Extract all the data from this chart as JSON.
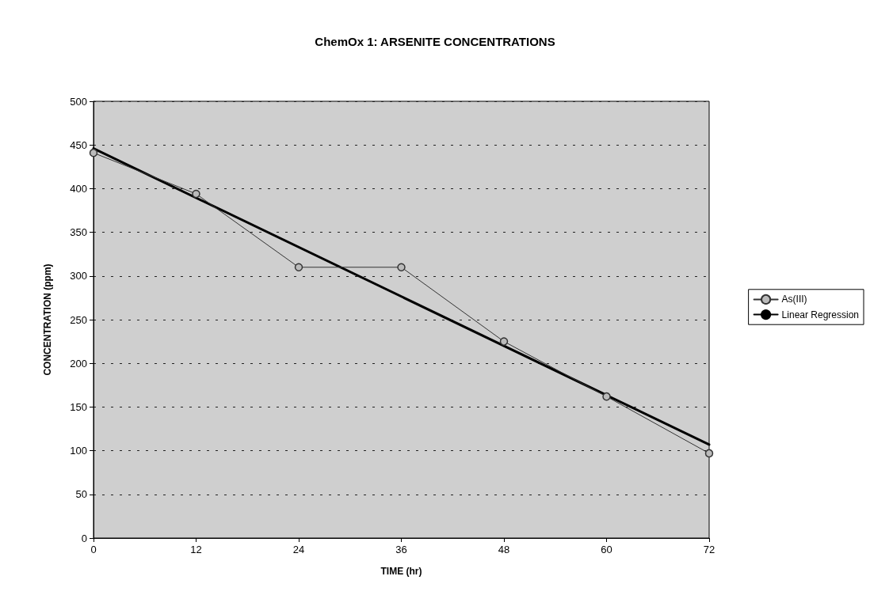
{
  "chart_data": {
    "type": "line",
    "title": "ChemOx 1: ARSENITE CONCENTRATIONS",
    "xlabel": "TIME (hr)",
    "ylabel": "CONCENTRATION (ppm)",
    "x": [
      0,
      12,
      24,
      36,
      48,
      60,
      72
    ],
    "series": [
      {
        "name": "As(III)",
        "color": "#333333",
        "values": [
          441,
          394,
          310,
          310,
          225,
          162,
          97
        ],
        "marker": "circle",
        "line_style": "solid"
      },
      {
        "name": "Linear Regression",
        "color": "#000000",
        "x": [
          0,
          72
        ],
        "values": [
          446,
          107
        ],
        "marker": "none",
        "line_style": "solid"
      }
    ],
    "xlim": [
      0,
      72
    ],
    "xticks": [
      0,
      12,
      24,
      36,
      48,
      60,
      72
    ],
    "ylim": [
      0,
      500
    ],
    "yticks": [
      0,
      50,
      100,
      150,
      200,
      250,
      300,
      350,
      400,
      450,
      500
    ],
    "grid": "y",
    "legend": "right"
  }
}
